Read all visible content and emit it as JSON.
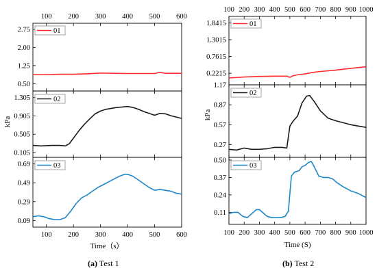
{
  "captions": [
    {
      "tag": "(a)",
      "text": "Test 1"
    },
    {
      "tag": "(b)",
      "text": "Test 2"
    }
  ],
  "chart_data": [
    {
      "type": "line",
      "figure": "Test 1",
      "x_ticks": [
        100,
        200,
        300,
        400,
        500,
        600
      ],
      "xlim": [
        50,
        600
      ],
      "xlabel": "Time（s）",
      "ylabel": "kPa",
      "panels": [
        {
          "series": [
            {
              "name": "01",
              "color": "#ff2a2a",
              "x": [
                50,
                100,
                150,
                200,
                250,
                300,
                350,
                400,
                450,
                500,
                520,
                540,
                600
              ],
              "y": [
                0.88,
                0.88,
                0.89,
                0.89,
                0.91,
                0.94,
                0.93,
                0.92,
                0.92,
                0.92,
                0.97,
                0.93,
                0.93
              ]
            }
          ],
          "ylim": [
            0.2,
            3.0
          ],
          "y_ticks": [
            "0.50",
            "1.25",
            "2.00",
            "2.75"
          ],
          "y_values": [
            0.5,
            1.25,
            2.0,
            2.75
          ]
        },
        {
          "series": [
            {
              "name": "02",
              "color": "#1a1a1a",
              "x": [
                50,
                80,
                120,
                150,
                170,
                185,
                200,
                220,
                240,
                260,
                280,
                300,
                320,
                340,
                360,
                380,
                400,
                420,
                440,
                460,
                480,
                500,
                520,
                540,
                560,
                580,
                600
              ],
              "y": [
                0.26,
                0.25,
                0.26,
                0.26,
                0.25,
                0.3,
                0.42,
                0.58,
                0.72,
                0.84,
                0.95,
                1.01,
                1.05,
                1.07,
                1.09,
                1.1,
                1.11,
                1.09,
                1.05,
                1.0,
                0.96,
                0.92,
                0.96,
                0.95,
                0.91,
                0.88,
                0.85
              ]
            }
          ],
          "ylim": [
            0.0,
            1.45
          ],
          "y_ticks": [
            "0.105",
            "0.505",
            "0.905",
            "1.305"
          ],
          "y_values": [
            0.105,
            0.505,
            0.905,
            1.305
          ]
        },
        {
          "series": [
            {
              "name": "03",
              "color": "#1c86c8",
              "x": [
                50,
                70,
                90,
                110,
                130,
                150,
                170,
                190,
                210,
                230,
                250,
                270,
                290,
                310,
                330,
                350,
                370,
                390,
                400,
                420,
                440,
                460,
                480,
                500,
                520,
                540,
                560,
                580,
                600
              ],
              "y": [
                0.13,
                0.14,
                0.13,
                0.11,
                0.1,
                0.1,
                0.12,
                0.19,
                0.27,
                0.33,
                0.36,
                0.4,
                0.44,
                0.47,
                0.5,
                0.53,
                0.56,
                0.58,
                0.58,
                0.56,
                0.52,
                0.48,
                0.44,
                0.41,
                0.42,
                0.41,
                0.4,
                0.38,
                0.37
              ]
            }
          ],
          "ylim": [
            0.02,
            0.76
          ],
          "y_ticks": [
            "0.09",
            "0.29",
            "0.49",
            "0.69"
          ],
          "y_values": [
            0.09,
            0.29,
            0.49,
            0.69
          ]
        }
      ]
    },
    {
      "type": "line",
      "figure": "Test 2",
      "x_ticks": [
        100,
        200,
        300,
        400,
        500,
        600,
        700,
        800,
        900,
        1000
      ],
      "xlim": [
        100,
        1000
      ],
      "xlabel": "Time (S)",
      "ylabel": "kPa",
      "panels": [
        {
          "series": [
            {
              "name": "01",
              "color": "#ff2a2a",
              "x": [
                100,
                200,
                300,
                400,
                480,
                500,
                520,
                560,
                600,
                650,
                700,
                800,
                900,
                1000
              ],
              "y": [
                0.07,
                0.1,
                0.12,
                0.13,
                0.13,
                0.09,
                0.14,
                0.18,
                0.2,
                0.25,
                0.28,
                0.32,
                0.38,
                0.43
              ]
            }
          ],
          "ylim": [
            -0.15,
            2.05
          ],
          "y_ticks": [
            "0.2215",
            "0.7615",
            "1.3015",
            "1.8415"
          ],
          "y_values": [
            0.2215,
            0.7615,
            1.3015,
            1.8415
          ]
        },
        {
          "series": [
            {
              "name": "02",
              "color": "#1a1a1a",
              "x": [
                100,
                150,
                200,
                250,
                300,
                350,
                400,
                450,
                480,
                500,
                520,
                550,
                580,
                610,
                630,
                660,
                700,
                750,
                800,
                850,
                900,
                950,
                1000
              ],
              "y": [
                0.2,
                0.19,
                0.22,
                0.2,
                0.2,
                0.21,
                0.23,
                0.23,
                0.22,
                0.55,
                0.62,
                0.7,
                0.9,
                1.0,
                1.01,
                0.92,
                0.78,
                0.67,
                0.63,
                0.6,
                0.57,
                0.55,
                0.53
              ]
            }
          ],
          "ylim": [
            0.08,
            1.17
          ],
          "y_ticks": [
            "0.27",
            "0.57",
            "0.87",
            "1.17"
          ],
          "y_values": [
            0.27,
            0.57,
            0.87,
            1.17
          ]
        },
        {
          "series": [
            {
              "name": "03",
              "color": "#1c86c8",
              "x": [
                100,
                130,
                160,
                190,
                220,
                250,
                280,
                300,
                320,
                350,
                380,
                410,
                440,
                470,
                490,
                510,
                530,
                560,
                580,
                600,
                620,
                640,
                660,
                690,
                720,
                750,
                780,
                810,
                850,
                900,
                950,
                1000
              ],
              "y": [
                0.1,
                0.11,
                0.11,
                0.08,
                0.07,
                0.1,
                0.13,
                0.13,
                0.11,
                0.08,
                0.07,
                0.07,
                0.07,
                0.08,
                0.12,
                0.38,
                0.41,
                0.42,
                0.45,
                0.46,
                0.48,
                0.49,
                0.45,
                0.38,
                0.37,
                0.37,
                0.36,
                0.33,
                0.3,
                0.27,
                0.25,
                0.22
              ]
            }
          ],
          "ylim": [
            0.02,
            0.52
          ],
          "y_ticks": [
            "0.11",
            "0.24",
            "0.37",
            "0.50"
          ],
          "y_values": [
            0.11,
            0.24,
            0.37,
            0.5
          ]
        }
      ]
    }
  ]
}
